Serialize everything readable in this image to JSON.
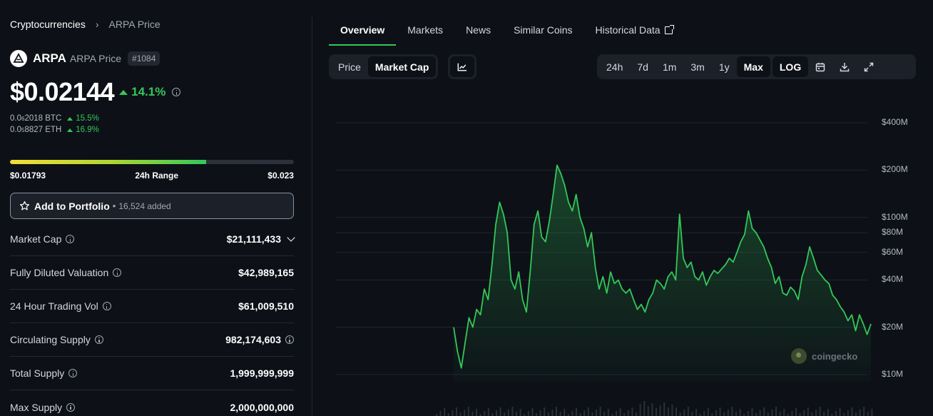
{
  "breadcrumb": {
    "root": "Cryptocurrencies",
    "current": "ARPA Price"
  },
  "coin": {
    "symbol": "ARPA",
    "name": "ARPA Price",
    "rank": "#1084"
  },
  "price": {
    "value": "$0.02144",
    "change": "14.1%"
  },
  "alt_prices": [
    {
      "pre": "0.0",
      "sub": "6",
      "num": "2018",
      "unit": "BTC",
      "change": "15.5%"
    },
    {
      "pre": "0.0",
      "sub": "5",
      "num": "8827",
      "unit": "ETH",
      "change": "16.9%"
    }
  ],
  "range": {
    "low": "$0.01793",
    "label": "24h Range",
    "high": "$0.023",
    "fill_fraction": 0.69
  },
  "portfolio": {
    "label": "Add to Portfolio",
    "sep": "•",
    "count": "16,524 added"
  },
  "stats": [
    {
      "key": "Market Cap",
      "value": "$21,111,433"
    },
    {
      "key": "Fully Diluted Valuation",
      "value": "$42,989,165"
    },
    {
      "key": "24 Hour Trading Vol",
      "value": "$61,009,510"
    },
    {
      "key": "Circulating Supply",
      "value": "982,174,603"
    },
    {
      "key": "Total Supply",
      "value": "1,999,999,999"
    },
    {
      "key": "Max Supply",
      "value": "2,000,000,000"
    }
  ],
  "tabs": [
    "Overview",
    "Markets",
    "News",
    "Similar Coins",
    "Historical Data"
  ],
  "chart_type_toggle": [
    "Price",
    "Market Cap"
  ],
  "ranges": [
    "24h",
    "7d",
    "1m",
    "3m",
    "1y",
    "Max",
    "LOG"
  ],
  "icons": [
    "line-chart-icon",
    "calendar-icon",
    "download-icon",
    "expand-icon",
    "info-icon",
    "star-icon",
    "external-link-icon",
    "chevron-down-icon"
  ],
  "colors": {
    "positive": "#34c759",
    "background": "#0d1117",
    "panel": "#1b2029"
  },
  "watermark": "coingecko",
  "chart_data": {
    "type": "area",
    "scale": "log",
    "metric": "Market Cap",
    "y_tick_labels": [
      "$400M",
      "$200M",
      "$100M",
      "$80M",
      "$60M",
      "$40M",
      "$20M",
      "$10M"
    ],
    "y_ticks": [
      400,
      200,
      100,
      80,
      60,
      40,
      20,
      10
    ],
    "ylim": [
      9,
      560
    ],
    "grid": true,
    "series": [
      {
        "values": [
          20,
          14,
          11,
          16,
          23,
          20,
          26,
          24,
          35,
          30,
          50,
          90,
          125,
          105,
          80,
          40,
          35,
          45,
          30,
          25,
          45,
          90,
          110,
          75,
          70,
          95,
          140,
          215,
          190,
          160,
          125,
          110,
          140,
          100,
          85,
          65,
          80,
          48,
          35,
          42,
          33,
          45,
          38,
          40,
          35,
          33,
          35,
          30,
          26,
          28,
          25,
          30,
          33,
          40,
          38,
          35,
          42,
          45,
          40,
          105,
          55,
          48,
          52,
          42,
          40,
          45,
          37,
          42,
          46,
          44,
          47,
          50,
          55,
          52,
          60,
          70,
          78,
          110,
          85,
          80,
          72,
          65,
          55,
          48,
          38,
          42,
          33,
          32,
          36,
          34,
          30,
          42,
          50,
          65,
          55,
          46,
          43,
          40,
          38,
          32,
          30,
          27,
          25,
          22,
          24,
          19,
          24,
          21,
          18,
          21
        ]
      }
    ],
    "volume_baseline": true
  }
}
